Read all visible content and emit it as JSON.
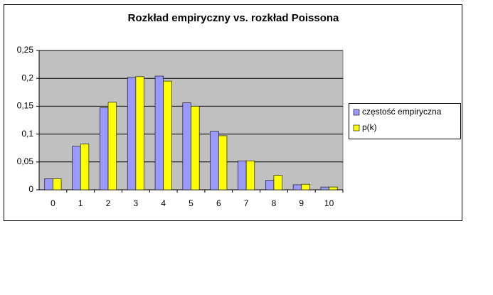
{
  "chart_data": {
    "type": "bar",
    "title": "Rozkład empiryczny vs. rozkład Poissona",
    "categories": [
      "0",
      "1",
      "2",
      "3",
      "4",
      "5",
      "6",
      "7",
      "8",
      "9",
      "10"
    ],
    "series": [
      {
        "name": "częstość empiryczna",
        "color": "#9999ff",
        "values": [
          0.02,
          0.078,
          0.147,
          0.202,
          0.204,
          0.156,
          0.105,
          0.052,
          0.017,
          0.009,
          0.005
        ]
      },
      {
        "name": "p(k)",
        "color": "#ffff00",
        "values": [
          0.02,
          0.082,
          0.157,
          0.203,
          0.195,
          0.15,
          0.097,
          0.052,
          0.026,
          0.01,
          0.005
        ]
      }
    ],
    "ylim": [
      0,
      0.25
    ],
    "yticks": [
      0,
      {
        "value": 0.05,
        "label": "0,05"
      },
      {
        "value": 0.1,
        "label": "0,1"
      },
      {
        "value": 0.15,
        "label": "0,15"
      },
      {
        "value": 0.2,
        "label": "0,2"
      },
      {
        "value": 0.25,
        "label": "0,25"
      }
    ],
    "grid": true,
    "legend": "right"
  }
}
